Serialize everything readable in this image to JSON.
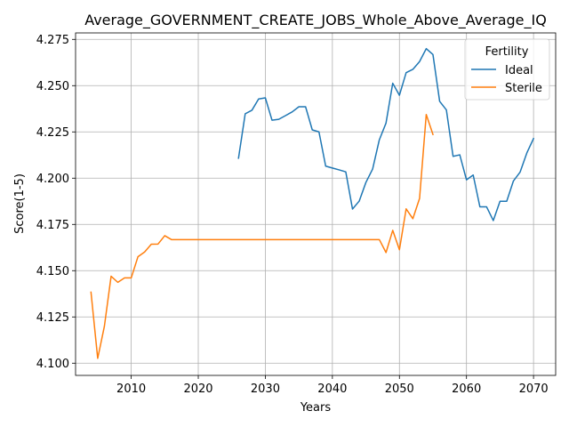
{
  "chart_data": {
    "type": "line",
    "title": "Average_GOVERNMENT_CREATE_JOBS_Whole_Above_Average_IQ",
    "xlabel": "Years",
    "ylabel": "Score(1-5)",
    "xlim": [
      2001.7,
      2073.3
    ],
    "ylim": [
      4.0934,
      4.2785
    ],
    "x_ticks": [
      2010,
      2020,
      2030,
      2040,
      2050,
      2060,
      2070
    ],
    "x_tick_labels": [
      "2010",
      "2020",
      "2030",
      "2040",
      "2050",
      "2060",
      "2070"
    ],
    "y_ticks": [
      4.1,
      4.125,
      4.15,
      4.175,
      4.2,
      4.225,
      4.25,
      4.275
    ],
    "y_tick_labels": [
      "4.100",
      "4.125",
      "4.150",
      "4.175",
      "4.200",
      "4.225",
      "4.250",
      "4.275"
    ],
    "grid": true,
    "legend": {
      "title": "Fertility",
      "position": "top-right"
    },
    "series": [
      {
        "name": "Ideal",
        "color": "#1f77b4",
        "x": [
          2026,
          2027,
          2028,
          2029,
          2030,
          2031,
          2032,
          2033,
          2034,
          2035,
          2036,
          2037,
          2038,
          2039,
          2040,
          2041,
          2042,
          2043,
          2044,
          2045,
          2046,
          2047,
          2048,
          2049,
          2050,
          2051,
          2052,
          2053,
          2054,
          2055,
          2056,
          2057,
          2058,
          2059,
          2060,
          2061,
          2062,
          2063,
          2064,
          2065,
          2066,
          2067,
          2068,
          2069,
          2070
        ],
        "y": [
          4.2108,
          4.2348,
          4.2367,
          4.2428,
          4.2434,
          4.2313,
          4.2318,
          4.2338,
          4.2358,
          4.2386,
          4.2386,
          4.2261,
          4.225,
          4.2065,
          4.2055,
          4.2045,
          4.2034,
          4.1833,
          4.1876,
          4.1977,
          4.2049,
          4.2207,
          4.2298,
          4.2513,
          4.2448,
          4.257,
          4.2588,
          4.263,
          4.27,
          4.2668,
          4.2415,
          4.2369,
          4.2118,
          4.2126,
          4.1991,
          4.2017,
          4.1845,
          4.1845,
          4.1771,
          4.1875,
          4.1875,
          4.1985,
          4.2033,
          4.2136,
          4.2214
        ]
      },
      {
        "name": "Sterile",
        "color": "#ff7f0e",
        "x": [
          2004,
          2005,
          2006,
          2007,
          2008,
          2009,
          2010,
          2011,
          2012,
          2013,
          2014,
          2015,
          2016,
          2017,
          2018,
          2019,
          2020,
          2021,
          2022,
          2023,
          2024,
          2025,
          2026,
          2027,
          2028,
          2029,
          2030,
          2031,
          2032,
          2033,
          2034,
          2035,
          2036,
          2037,
          2038,
          2039,
          2040,
          2041,
          2042,
          2043,
          2044,
          2045,
          2046,
          2047,
          2048,
          2049,
          2050,
          2051,
          2052,
          2053,
          2054,
          2055
        ],
        "y": [
          4.1384,
          4.1026,
          4.12,
          4.147,
          4.1437,
          4.1461,
          4.1461,
          4.1575,
          4.1601,
          4.1643,
          4.1644,
          4.1689,
          4.1668,
          4.1668,
          4.1668,
          4.1668,
          4.1668,
          4.1668,
          4.1668,
          4.1668,
          4.1668,
          4.1668,
          4.1668,
          4.1668,
          4.1668,
          4.1668,
          4.1668,
          4.1668,
          4.1668,
          4.1668,
          4.1668,
          4.1668,
          4.1668,
          4.1668,
          4.1668,
          4.1668,
          4.1668,
          4.1668,
          4.1668,
          4.1668,
          4.1668,
          4.1668,
          4.1668,
          4.1668,
          4.1598,
          4.1718,
          4.1613,
          4.1834,
          4.1781,
          4.189,
          4.2344,
          4.2236
        ]
      }
    ]
  }
}
